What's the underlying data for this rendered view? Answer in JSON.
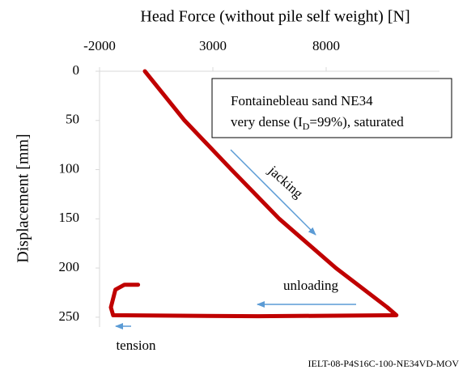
{
  "chart_data": {
    "type": "line",
    "x_label": "Head Force (without pile self weight) [N]",
    "y_label": "Displacement [mm]",
    "x": [
      0,
      1750,
      3820,
      5930,
      8430,
      10700,
      11100,
      5000,
      -1400,
      -1500,
      -1300,
      -900,
      -300
    ],
    "series": [
      {
        "color": "#c00000",
        "values": [
          0,
          50,
          100,
          150,
          200,
          240,
          248,
          249,
          248,
          240,
          222,
          217,
          217
        ]
      }
    ],
    "xlim": [
      -2000,
      13000
    ],
    "ylim": [
      0,
      260
    ],
    "xticks": [
      -2000,
      3000,
      8000
    ],
    "yticks": [
      0,
      50,
      100,
      150,
      200,
      250
    ],
    "y_inverted": true,
    "x_axis_position": "top",
    "annotations": {
      "box_line1": "Fontainebleau  sand NE34",
      "box_line2_a": "very dense (I",
      "box_line2_sub": "D",
      "box_line2_b": "=99%), saturated",
      "jacking": "jacking",
      "unloading": "unloading",
      "tension": "tension",
      "footer": "IELT-08-P4S16C-100-NE34VD-MOV"
    }
  }
}
